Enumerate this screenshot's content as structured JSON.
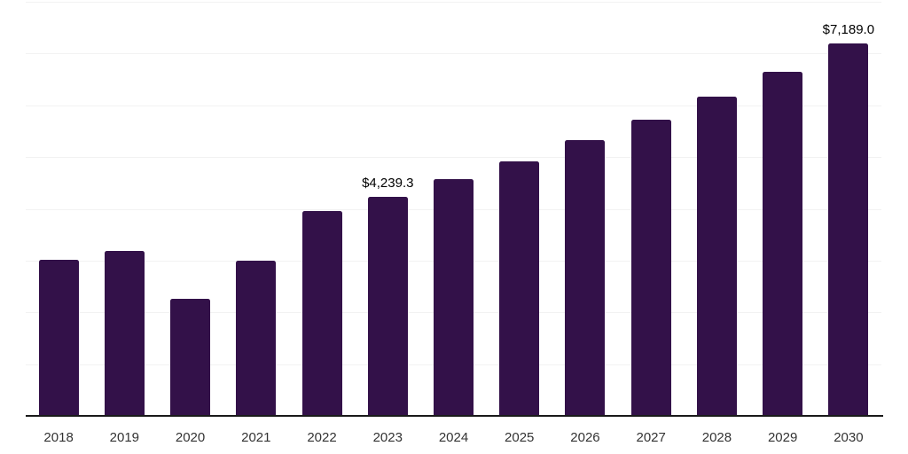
{
  "chart_data": {
    "type": "bar",
    "title": "",
    "xlabel": "",
    "ylabel": "",
    "categories": [
      "2018",
      "2019",
      "2020",
      "2021",
      "2022",
      "2023",
      "2024",
      "2025",
      "2026",
      "2027",
      "2028",
      "2029",
      "2030"
    ],
    "values": [
      3020,
      3180,
      2270,
      2990,
      3950,
      4239.3,
      4580,
      4925,
      5320,
      5730,
      6175,
      6655,
      7189.0
    ],
    "data_labels": [
      "",
      "",
      "",
      "",
      "",
      "$4,239.3",
      "",
      "",
      "",
      "",
      "",
      "",
      "$7,189.0"
    ],
    "ylim": [
      0,
      8000
    ],
    "gridline_interval": 1000,
    "grid": true,
    "legend": false,
    "y_axis_labels_visible": false,
    "colors": {
      "bar": "#331149",
      "axis_line": "#1a1a1a",
      "gridline": "#f2f2f2",
      "data_label": "#000000",
      "tick_label": "#333333",
      "background": "#ffffff"
    }
  }
}
